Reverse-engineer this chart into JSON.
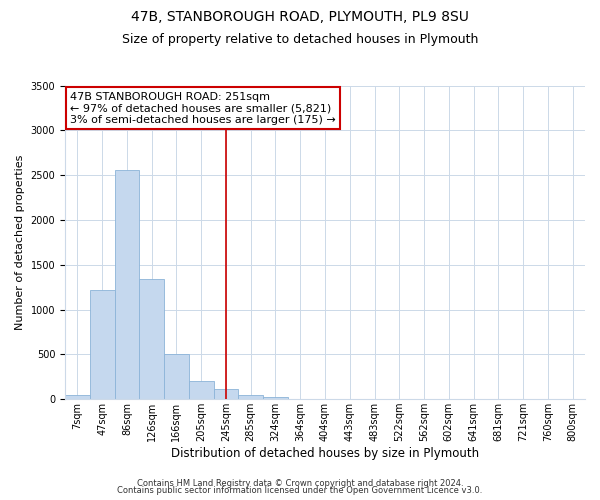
{
  "title": "47B, STANBOROUGH ROAD, PLYMOUTH, PL9 8SU",
  "subtitle": "Size of property relative to detached houses in Plymouth",
  "bar_labels": [
    "7sqm",
    "47sqm",
    "86sqm",
    "126sqm",
    "166sqm",
    "205sqm",
    "245sqm",
    "285sqm",
    "324sqm",
    "364sqm",
    "404sqm",
    "443sqm",
    "483sqm",
    "522sqm",
    "562sqm",
    "602sqm",
    "641sqm",
    "681sqm",
    "721sqm",
    "760sqm",
    "800sqm"
  ],
  "bar_values": [
    50,
    1220,
    2560,
    1340,
    500,
    200,
    110,
    50,
    20,
    5,
    2,
    1,
    0,
    0,
    0,
    0,
    0,
    0,
    0,
    0,
    0
  ],
  "bar_color": "#c5d8ee",
  "bar_edge_color": "#8cb4d8",
  "vline_x_index": 6,
  "vline_color": "#cc0000",
  "ylim": [
    0,
    3500
  ],
  "xlabel": "Distribution of detached houses by size in Plymouth",
  "ylabel": "Number of detached properties",
  "annotation_title": "47B STANBOROUGH ROAD: 251sqm",
  "annotation_line1": "← 97% of detached houses are smaller (5,821)",
  "annotation_line2": "3% of semi-detached houses are larger (175) →",
  "annotation_box_color": "#ffffff",
  "annotation_box_edge": "#cc0000",
  "footnote1": "Contains HM Land Registry data © Crown copyright and database right 2024.",
  "footnote2": "Contains public sector information licensed under the Open Government Licence v3.0.",
  "background_color": "#ffffff",
  "grid_color": "#ccd9e8",
  "title_fontsize": 10,
  "subtitle_fontsize": 9,
  "xlabel_fontsize": 8.5,
  "ylabel_fontsize": 8,
  "tick_fontsize": 7,
  "annotation_fontsize": 8,
  "footnote_fontsize": 6
}
